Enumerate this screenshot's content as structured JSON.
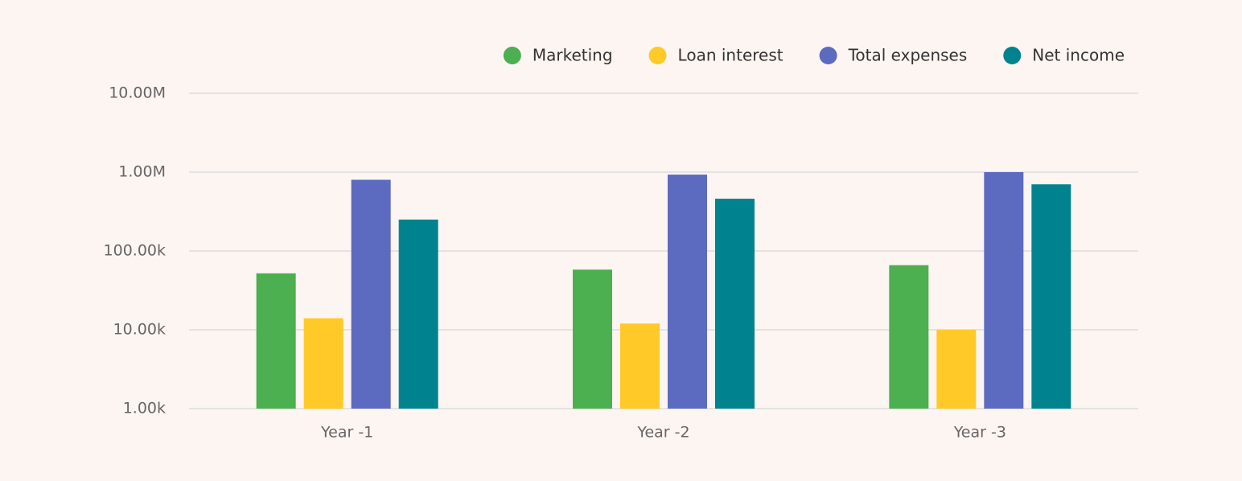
{
  "chart_data": {
    "type": "bar",
    "yscale": "log",
    "grid": true,
    "legend": "top-right",
    "categories": [
      "Year -1",
      "Year -2",
      "Year -3"
    ],
    "series": [
      {
        "name": "Marketing",
        "color": "#4caf50",
        "values": [
          52000,
          58000,
          66000
        ]
      },
      {
        "name": "Loan interest",
        "color": "#ffca28",
        "values": [
          14000,
          12000,
          10000
        ]
      },
      {
        "name": "Total expenses",
        "color": "#5c6bc0",
        "values": [
          800000,
          930000,
          1000000
        ]
      },
      {
        "name": "Net income",
        "color": "#00838f",
        "values": [
          250000,
          460000,
          700000
        ]
      }
    ],
    "ylim": [
      1000,
      10000000
    ],
    "yticks": [
      {
        "value": 1000,
        "label": "1.00k"
      },
      {
        "value": 10000,
        "label": "10.00k"
      },
      {
        "value": 100000,
        "label": "100.00k"
      },
      {
        "value": 1000000,
        "label": "1.00M"
      },
      {
        "value": 10000000,
        "label": "10.00M"
      }
    ]
  }
}
